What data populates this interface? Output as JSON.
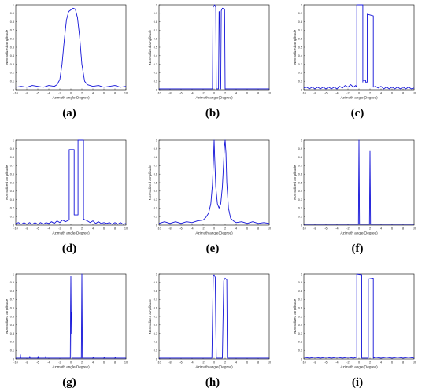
{
  "figure": {
    "colors": {
      "series": "#1414d8",
      "axes": "#000000"
    }
  },
  "chart_data": [
    {
      "panel": "(a)",
      "type": "line",
      "xlabel": "Azimuth angle(Degree)",
      "ylabel": "Normalized amplitude",
      "xlim": [
        -10,
        10
      ],
      "ylim": [
        0,
        1
      ],
      "xticks": [
        -10,
        -8,
        -6,
        -4,
        -2,
        0,
        2,
        4,
        6,
        8,
        10
      ],
      "yticks": [
        0,
        0.1,
        0.2,
        0.3,
        0.4,
        0.5,
        0.6,
        0.7,
        0.8,
        0.9,
        1
      ],
      "series": [
        {
          "x": [
            -10,
            -9,
            -8,
            -7,
            -6,
            -5,
            -4,
            -3,
            -2.5,
            -2,
            -1.6,
            -1.2,
            -0.8,
            -0.4,
            0,
            0.4,
            0.8,
            1.2,
            1.6,
            2,
            2.5,
            3,
            4,
            5,
            6,
            7,
            8,
            9,
            10
          ],
          "y": [
            0.03,
            0.04,
            0.03,
            0.05,
            0.04,
            0.03,
            0.05,
            0.04,
            0.06,
            0.12,
            0.3,
            0.58,
            0.82,
            0.92,
            0.94,
            0.96,
            0.95,
            0.85,
            0.62,
            0.3,
            0.1,
            0.06,
            0.04,
            0.05,
            0.03,
            0.04,
            0.05,
            0.03,
            0.04
          ]
        }
      ]
    },
    {
      "panel": "(b)",
      "type": "line",
      "xlabel": "Azimuth angle(Degree)",
      "ylabel": "Normalized amplitude",
      "xlim": [
        -10,
        10
      ],
      "ylim": [
        0,
        1
      ],
      "xticks": [
        -10,
        -8,
        -6,
        -4,
        -2,
        0,
        2,
        4,
        6,
        8,
        10
      ],
      "yticks": [
        0,
        0.1,
        0.2,
        0.3,
        0.4,
        0.5,
        0.6,
        0.7,
        0.8,
        0.9,
        1
      ],
      "series": [
        {
          "x": [
            -10,
            -0.3,
            -0.2,
            0.1,
            0.3,
            0.4,
            0.8,
            0.9,
            1,
            1.1,
            1.2,
            1.3,
            1.5,
            1.9,
            2,
            10
          ],
          "y": [
            0.01,
            0.01,
            0.97,
            1.0,
            0.97,
            0.01,
            0.01,
            0.92,
            0.92,
            0.01,
            0.01,
            0.93,
            0.96,
            0.95,
            0.01,
            0.01
          ]
        }
      ]
    },
    {
      "panel": "(c)",
      "type": "line",
      "xlabel": "Azimuth angle(Degree)",
      "ylabel": "Normalized amplitude",
      "xlim": [
        -10,
        10
      ],
      "ylim": [
        0,
        1
      ],
      "xticks": [
        -10,
        -8,
        -6,
        -4,
        -2,
        0,
        2,
        4,
        6,
        8,
        10
      ],
      "yticks": [
        0,
        0.1,
        0.2,
        0.3,
        0.4,
        0.5,
        0.6,
        0.7,
        0.8,
        0.9,
        1
      ],
      "series": [
        {
          "x": [
            -10,
            -9.5,
            -9,
            -8.5,
            -8,
            -7.5,
            -7,
            -6.5,
            -6,
            -5.5,
            -5,
            -4.5,
            -4,
            -3.5,
            -3,
            -2.5,
            -2,
            -1.5,
            -1,
            -0.6,
            -0.4,
            -0.4,
            0.7,
            0.7,
            0.7,
            1.2,
            1.2,
            1.3,
            1.5,
            1.5,
            2.6,
            2.6,
            3,
            3.5,
            4,
            4.5,
            5,
            5.5,
            6,
            6.5,
            7,
            7.5,
            8,
            8.5,
            9,
            9.5,
            10
          ],
          "y": [
            0.02,
            0.03,
            0.01,
            0.03,
            0.01,
            0.03,
            0.01,
            0.03,
            0.01,
            0.03,
            0.01,
            0.03,
            0.01,
            0.04,
            0.02,
            0.05,
            0.03,
            0.06,
            0.03,
            0.05,
            0.03,
            1.0,
            1.0,
            0.09,
            0.11,
            0.11,
            0.09,
            0.09,
            0.09,
            0.89,
            0.87,
            0.03,
            0.04,
            0.02,
            0.04,
            0.01,
            0.03,
            0.01,
            0.03,
            0.01,
            0.03,
            0.01,
            0.03,
            0.01,
            0.03,
            0.01,
            0.02
          ]
        }
      ]
    },
    {
      "panel": "(d)",
      "type": "line",
      "xlabel": "Azimuth angle(Degree)",
      "ylabel": "Normalized amplitude",
      "xlim": [
        -10,
        10
      ],
      "ylim": [
        0,
        1
      ],
      "xticks": [
        -10,
        -8,
        -6,
        -4,
        -2,
        0,
        2,
        4,
        6,
        8,
        10
      ],
      "yticks": [
        0,
        0.1,
        0.2,
        0.3,
        0.4,
        0.5,
        0.6,
        0.7,
        0.8,
        0.9,
        1
      ],
      "series": [
        {
          "x": [
            -10,
            -9.5,
            -9,
            -8.5,
            -8,
            -7.5,
            -7,
            -6.5,
            -6,
            -5.5,
            -5,
            -4.5,
            -4,
            -3.5,
            -3,
            -2.5,
            -2,
            -1.5,
            -1,
            -0.3,
            -0.3,
            0.6,
            0.6,
            1.3,
            1.3,
            2.3,
            2.3,
            3,
            3.5,
            4,
            4.5,
            5,
            5.5,
            6,
            6.5,
            7,
            7.5,
            8,
            8.5,
            9,
            9.5,
            10
          ],
          "y": [
            0.02,
            0.03,
            0.01,
            0.03,
            0.01,
            0.03,
            0.01,
            0.03,
            0.01,
            0.03,
            0.01,
            0.03,
            0.02,
            0.04,
            0.02,
            0.05,
            0.03,
            0.06,
            0.04,
            0.06,
            0.89,
            0.89,
            0.12,
            0.12,
            1.0,
            1.0,
            0.07,
            0.05,
            0.03,
            0.05,
            0.02,
            0.04,
            0.02,
            0.03,
            0.02,
            0.03,
            0.01,
            0.03,
            0.01,
            0.03,
            0.01,
            0.02
          ]
        }
      ]
    },
    {
      "panel": "(e)",
      "type": "line",
      "xlabel": "Azimuth angle(Degree)",
      "ylabel": "Normalized amplitude",
      "xlim": [
        -10,
        10
      ],
      "ylim": [
        0,
        1
      ],
      "xticks": [
        -10,
        -8,
        -6,
        -4,
        -2,
        0,
        2,
        4,
        6,
        8,
        10
      ],
      "yticks": [
        0,
        0.1,
        0.2,
        0.3,
        0.4,
        0.5,
        0.6,
        0.7,
        0.8,
        0.9,
        1
      ],
      "series": [
        {
          "x": [
            -10,
            -9,
            -8,
            -7,
            -6,
            -5,
            -4,
            -3,
            -2,
            -1.5,
            -1,
            -0.6,
            -0.3,
            -0.1,
            0,
            0.1,
            0.3,
            0.6,
            0.9,
            1.2,
            1.5,
            1.7,
            1.85,
            2,
            2.15,
            2.3,
            2.6,
            3,
            3.5,
            4,
            5,
            6,
            7,
            8,
            9,
            10
          ],
          "y": [
            0.02,
            0.04,
            0.02,
            0.04,
            0.02,
            0.04,
            0.03,
            0.05,
            0.06,
            0.09,
            0.14,
            0.25,
            0.48,
            0.8,
            1.0,
            0.8,
            0.45,
            0.25,
            0.2,
            0.25,
            0.45,
            0.7,
            0.9,
            1.0,
            0.85,
            0.5,
            0.2,
            0.08,
            0.05,
            0.03,
            0.04,
            0.02,
            0.04,
            0.02,
            0.03,
            0.02
          ]
        }
      ]
    },
    {
      "panel": "(f)",
      "type": "line",
      "xlabel": "Azimuth angle(Degree)",
      "ylabel": "Normalized amplitude",
      "xlim": [
        -10,
        10
      ],
      "ylim": [
        0,
        1
      ],
      "xticks": [
        -10,
        -8,
        -6,
        -4,
        -2,
        0,
        2,
        4,
        6,
        8,
        10
      ],
      "yticks": [
        0,
        0.1,
        0.2,
        0.3,
        0.4,
        0.5,
        0.6,
        0.7,
        0.8,
        0.9,
        1
      ],
      "series": [
        {
          "x": [
            -10,
            -0.1,
            -0.05,
            0,
            0.05,
            0.1,
            1.9,
            1.95,
            2,
            2.05,
            2.1,
            10
          ],
          "y": [
            0.01,
            0.01,
            0.5,
            1.0,
            0.5,
            0.01,
            0.01,
            0.45,
            0.87,
            0.45,
            0.01,
            0.01
          ]
        }
      ]
    },
    {
      "panel": "(g)",
      "type": "line",
      "xlabel": "Azimuth angle(Degree)",
      "ylabel": "Normalized amplitude",
      "xlim": [
        -10,
        10
      ],
      "ylim": [
        0,
        1
      ],
      "xticks": [
        -10,
        -8,
        -6,
        -4,
        -2,
        0,
        2,
        4,
        6,
        8,
        10
      ],
      "yticks": [
        0,
        0.1,
        0.2,
        0.3,
        0.4,
        0.5,
        0.6,
        0.7,
        0.8,
        0.9,
        1
      ],
      "series": [
        {
          "x": [
            -10,
            -9.2,
            -9.15,
            -9.1,
            -7.5,
            -7.45,
            -7.4,
            -6,
            -5.95,
            -5.9,
            -4.6,
            -4.55,
            -4.5,
            -0.1,
            -0.05,
            0,
            0.05,
            0.1,
            0.15,
            0.2,
            1.9,
            1.95,
            2,
            2.05,
            2.1,
            4,
            4.05,
            4.1,
            6,
            6.05,
            6.1,
            8,
            8.05,
            8.1,
            10
          ],
          "y": [
            0.01,
            0.01,
            0.05,
            0.01,
            0.01,
            0.03,
            0.01,
            0.01,
            0.03,
            0.01,
            0.01,
            0.03,
            0.01,
            0.01,
            0.6,
            0.97,
            0.55,
            0.3,
            0.55,
            0.01,
            0.01,
            0.5,
            1.0,
            0.5,
            0.01,
            0.01,
            0.02,
            0.01,
            0.01,
            0.02,
            0.01,
            0.01,
            0.02,
            0.01,
            0.01
          ]
        }
      ]
    },
    {
      "panel": "(h)",
      "type": "line",
      "xlabel": "Azimuth angle(Degree)",
      "ylabel": "Normalized amplitude",
      "xlim": [
        -10,
        10
      ],
      "ylim": [
        0,
        1
      ],
      "xticks": [
        -10,
        -8,
        -6,
        -4,
        -2,
        0,
        2,
        4,
        6,
        8,
        10
      ],
      "yticks": [
        0,
        0.1,
        0.2,
        0.3,
        0.4,
        0.5,
        0.6,
        0.7,
        0.8,
        0.9,
        1
      ],
      "series": [
        {
          "x": [
            -10,
            -0.4,
            -0.3,
            -0.15,
            0,
            0.2,
            0.3,
            0.4,
            1.5,
            1.6,
            1.75,
            2,
            2.3,
            2.4,
            10
          ],
          "y": [
            0.01,
            0.01,
            0.45,
            0.98,
            0.99,
            0.96,
            0.4,
            0.01,
            0.01,
            0.4,
            0.92,
            0.95,
            0.93,
            0.01,
            0.01
          ]
        }
      ]
    },
    {
      "panel": "(i)",
      "type": "line",
      "xlabel": "Azimuth angle(Degree)",
      "ylabel": "Normalized amplitude",
      "xlim": [
        -10,
        10
      ],
      "ylim": [
        0,
        1
      ],
      "xticks": [
        -10,
        -8,
        -6,
        -4,
        -2,
        0,
        2,
        4,
        6,
        8,
        10
      ],
      "yticks": [
        0,
        0.1,
        0.2,
        0.3,
        0.4,
        0.5,
        0.6,
        0.7,
        0.8,
        0.9,
        1
      ],
      "series": [
        {
          "x": [
            -10,
            -9,
            -8,
            -7,
            -6,
            -5,
            -4,
            -3,
            -2,
            -1,
            -0.4,
            -0.4,
            0.5,
            0.5,
            1.7,
            1.7,
            2.6,
            2.6,
            3,
            4,
            5,
            6,
            7,
            8,
            9,
            10
          ],
          "y": [
            0.02,
            0.01,
            0.02,
            0.01,
            0.02,
            0.01,
            0.02,
            0.01,
            0.02,
            0.01,
            0.02,
            1.0,
            0.99,
            0.01,
            0.01,
            0.94,
            0.95,
            0.01,
            0.02,
            0.01,
            0.02,
            0.01,
            0.02,
            0.01,
            0.02,
            0.01
          ]
        }
      ]
    }
  ]
}
